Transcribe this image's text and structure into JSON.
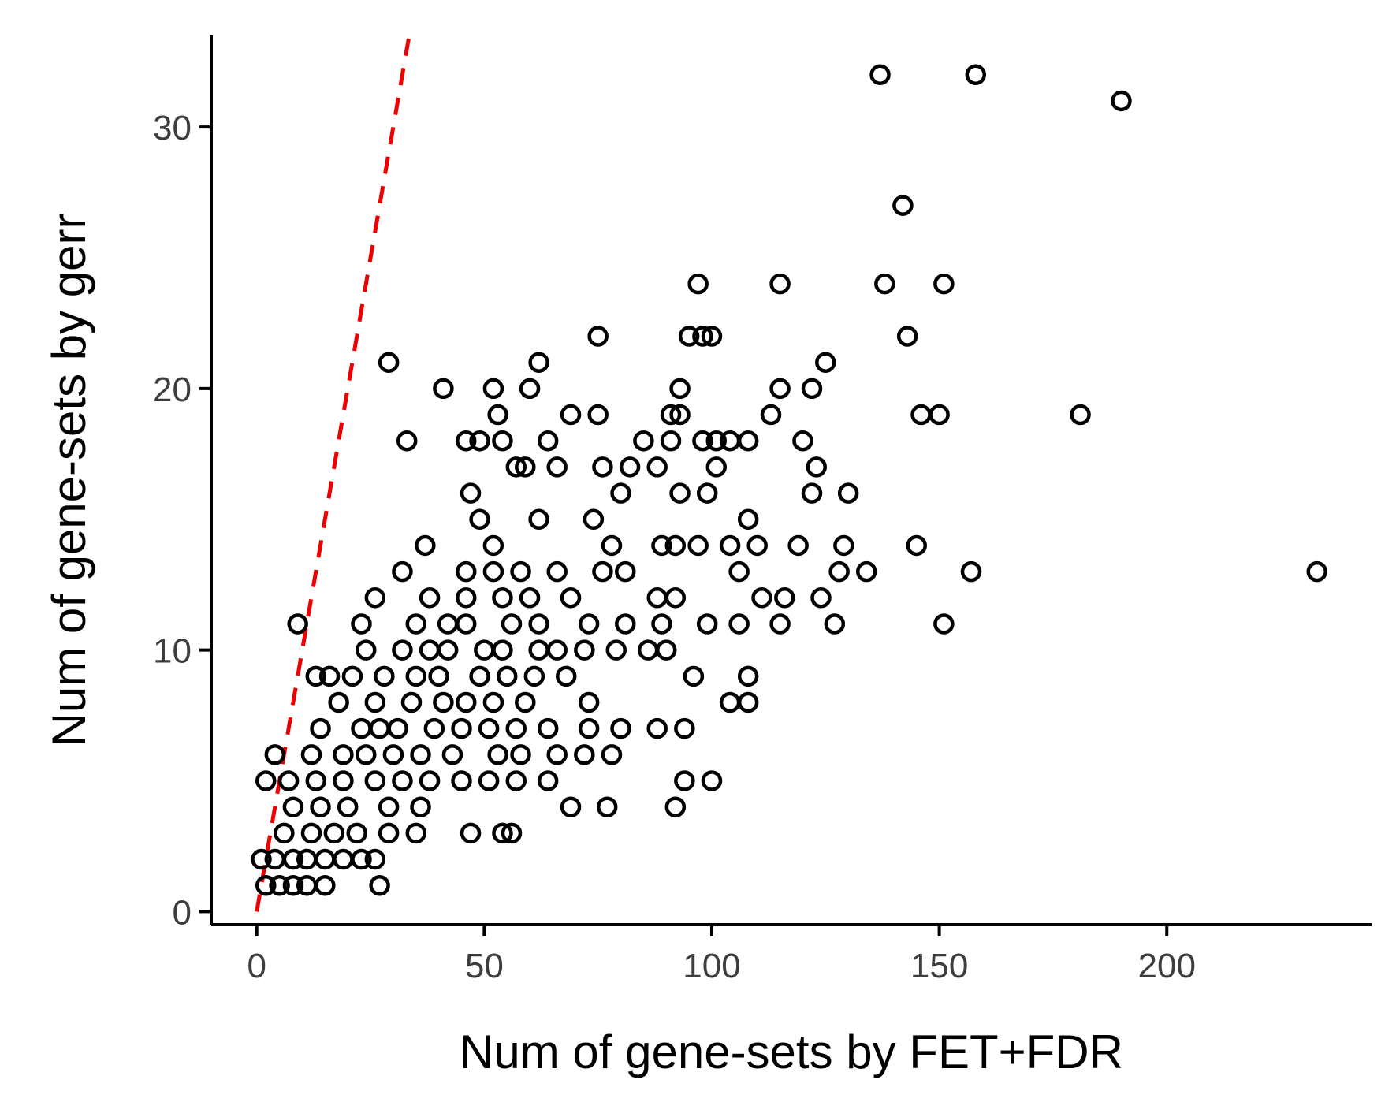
{
  "chart_data": {
    "type": "scatter",
    "title": "",
    "xlabel": "Num of gene-sets by FET+FDR",
    "ylabel": "Num of gene-sets by gerr",
    "xlim": [
      -10,
      245
    ],
    "ylim": [
      -0.5,
      33.5
    ],
    "x_ticks": [
      0,
      50,
      100,
      150,
      200
    ],
    "y_ticks": [
      0,
      10,
      20,
      30
    ],
    "grid": false,
    "legend": "none",
    "point_color": "#000000",
    "reference_line": {
      "label": "",
      "color": "#ee0000",
      "style": "dashed",
      "slope": 1,
      "intercept": 0
    },
    "points": [
      [
        137,
        32
      ],
      [
        158,
        32
      ],
      [
        190,
        31
      ],
      [
        142,
        27
      ],
      [
        97,
        24
      ],
      [
        115,
        24
      ],
      [
        138,
        24
      ],
      [
        151,
        24
      ],
      [
        95,
        22
      ],
      [
        98,
        22
      ],
      [
        100,
        22
      ],
      [
        75,
        22
      ],
      [
        143,
        22
      ],
      [
        29,
        21
      ],
      [
        62,
        21
      ],
      [
        125,
        21
      ],
      [
        41,
        20
      ],
      [
        52,
        20
      ],
      [
        60,
        20
      ],
      [
        93,
        20
      ],
      [
        115,
        20
      ],
      [
        122,
        20
      ],
      [
        53,
        19
      ],
      [
        69,
        19
      ],
      [
        75,
        19
      ],
      [
        91,
        19
      ],
      [
        93,
        19
      ],
      [
        113,
        19
      ],
      [
        146,
        19
      ],
      [
        150,
        19
      ],
      [
        181,
        19
      ],
      [
        33,
        18
      ],
      [
        46,
        18
      ],
      [
        49,
        18
      ],
      [
        54,
        18
      ],
      [
        64,
        18
      ],
      [
        85,
        18
      ],
      [
        91,
        18
      ],
      [
        98,
        18
      ],
      [
        101,
        18
      ],
      [
        104,
        18
      ],
      [
        108,
        18
      ],
      [
        120,
        18
      ],
      [
        57,
        17
      ],
      [
        59,
        17
      ],
      [
        66,
        17
      ],
      [
        76,
        17
      ],
      [
        82,
        17
      ],
      [
        88,
        17
      ],
      [
        101,
        17
      ],
      [
        123,
        17
      ],
      [
        47,
        16
      ],
      [
        80,
        16
      ],
      [
        93,
        16
      ],
      [
        99,
        16
      ],
      [
        122,
        16
      ],
      [
        130,
        16
      ],
      [
        49,
        15
      ],
      [
        62,
        15
      ],
      [
        74,
        15
      ],
      [
        108,
        15
      ],
      [
        37,
        14
      ],
      [
        52,
        14
      ],
      [
        78,
        14
      ],
      [
        89,
        14
      ],
      [
        92,
        14
      ],
      [
        97,
        14
      ],
      [
        104,
        14
      ],
      [
        110,
        14
      ],
      [
        119,
        14
      ],
      [
        129,
        14
      ],
      [
        145,
        14
      ],
      [
        32,
        13
      ],
      [
        46,
        13
      ],
      [
        52,
        13
      ],
      [
        58,
        13
      ],
      [
        66,
        13
      ],
      [
        76,
        13
      ],
      [
        81,
        13
      ],
      [
        106,
        13
      ],
      [
        128,
        13
      ],
      [
        134,
        13
      ],
      [
        157,
        13
      ],
      [
        233,
        13
      ],
      [
        26,
        12
      ],
      [
        38,
        12
      ],
      [
        46,
        12
      ],
      [
        54,
        12
      ],
      [
        60,
        12
      ],
      [
        69,
        12
      ],
      [
        88,
        12
      ],
      [
        92,
        12
      ],
      [
        111,
        12
      ],
      [
        116,
        12
      ],
      [
        124,
        12
      ],
      [
        9,
        11
      ],
      [
        23,
        11
      ],
      [
        35,
        11
      ],
      [
        42,
        11
      ],
      [
        46,
        11
      ],
      [
        56,
        11
      ],
      [
        62,
        11
      ],
      [
        73,
        11
      ],
      [
        81,
        11
      ],
      [
        89,
        11
      ],
      [
        99,
        11
      ],
      [
        106,
        11
      ],
      [
        115,
        11
      ],
      [
        127,
        11
      ],
      [
        151,
        11
      ],
      [
        24,
        10
      ],
      [
        32,
        10
      ],
      [
        38,
        10
      ],
      [
        42,
        10
      ],
      [
        50,
        10
      ],
      [
        54,
        10
      ],
      [
        62,
        10
      ],
      [
        66,
        10
      ],
      [
        72,
        10
      ],
      [
        79,
        10
      ],
      [
        86,
        10
      ],
      [
        90,
        10
      ],
      [
        13,
        9
      ],
      [
        16,
        9
      ],
      [
        21,
        9
      ],
      [
        28,
        9
      ],
      [
        35,
        9
      ],
      [
        40,
        9
      ],
      [
        49,
        9
      ],
      [
        55,
        9
      ],
      [
        61,
        9
      ],
      [
        68,
        9
      ],
      [
        96,
        9
      ],
      [
        108,
        9
      ],
      [
        18,
        8
      ],
      [
        26,
        8
      ],
      [
        34,
        8
      ],
      [
        41,
        8
      ],
      [
        46,
        8
      ],
      [
        52,
        8
      ],
      [
        59,
        8
      ],
      [
        73,
        8
      ],
      [
        104,
        8
      ],
      [
        108,
        8
      ],
      [
        14,
        7
      ],
      [
        23,
        7
      ],
      [
        27,
        7
      ],
      [
        31,
        7
      ],
      [
        39,
        7
      ],
      [
        45,
        7
      ],
      [
        51,
        7
      ],
      [
        57,
        7
      ],
      [
        64,
        7
      ],
      [
        73,
        7
      ],
      [
        80,
        7
      ],
      [
        88,
        7
      ],
      [
        94,
        7
      ],
      [
        4,
        6
      ],
      [
        12,
        6
      ],
      [
        19,
        6
      ],
      [
        24,
        6
      ],
      [
        30,
        6
      ],
      [
        36,
        6
      ],
      [
        43,
        6
      ],
      [
        53,
        6
      ],
      [
        58,
        6
      ],
      [
        66,
        6
      ],
      [
        72,
        6
      ],
      [
        78,
        6
      ],
      [
        2,
        5
      ],
      [
        7,
        5
      ],
      [
        13,
        5
      ],
      [
        19,
        5
      ],
      [
        26,
        5
      ],
      [
        32,
        5
      ],
      [
        38,
        5
      ],
      [
        45,
        5
      ],
      [
        51,
        5
      ],
      [
        57,
        5
      ],
      [
        64,
        5
      ],
      [
        94,
        5
      ],
      [
        100,
        5
      ],
      [
        8,
        4
      ],
      [
        14,
        4
      ],
      [
        20,
        4
      ],
      [
        29,
        4
      ],
      [
        36,
        4
      ],
      [
        69,
        4
      ],
      [
        77,
        4
      ],
      [
        92,
        4
      ],
      [
        6,
        3
      ],
      [
        12,
        3
      ],
      [
        17,
        3
      ],
      [
        22,
        3
      ],
      [
        29,
        3
      ],
      [
        35,
        3
      ],
      [
        47,
        3
      ],
      [
        54,
        3
      ],
      [
        56,
        3
      ],
      [
        1,
        2
      ],
      [
        4,
        2
      ],
      [
        8,
        2
      ],
      [
        11,
        2
      ],
      [
        15,
        2
      ],
      [
        19,
        2
      ],
      [
        23,
        2
      ],
      [
        26,
        2
      ],
      [
        2,
        1
      ],
      [
        5,
        1
      ],
      [
        8,
        1
      ],
      [
        11,
        1
      ],
      [
        15,
        1
      ],
      [
        27,
        1
      ]
    ]
  }
}
